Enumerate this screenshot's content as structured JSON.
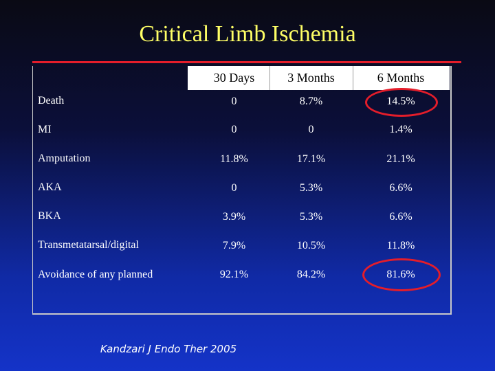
{
  "slide": {
    "title": "Critical Limb Ischemia",
    "citation": "Kandzari J Endo Ther 2005"
  },
  "table": {
    "columns": [
      "30 Days",
      "3 Months",
      "6 Months"
    ],
    "rows": [
      {
        "label": "Death",
        "values": [
          "0",
          "8.7%",
          "14.5%"
        ]
      },
      {
        "label": "MI",
        "values": [
          "0",
          "0",
          "1.4%"
        ]
      },
      {
        "label": "Amputation",
        "values": [
          "11.8%",
          "17.1%",
          "21.1%"
        ]
      },
      {
        "label": "AKA",
        "values": [
          "0",
          "5.3%",
          "6.6%"
        ]
      },
      {
        "label": "BKA",
        "values": [
          "3.9%",
          "5.3%",
          "6.6%"
        ]
      },
      {
        "label": "Transmetatarsal/digital",
        "values": [
          "7.9%",
          "10.5%",
          "11.8%"
        ]
      },
      {
        "label": "Avoidance of any planned",
        "values": [
          "92.1%",
          "84.2%",
          "81.6%"
        ]
      }
    ]
  },
  "colors": {
    "title": "#ffff66",
    "accent_red": "#e41d2a",
    "background_top": "#0a0a14",
    "background_bottom": "#1433c8"
  }
}
